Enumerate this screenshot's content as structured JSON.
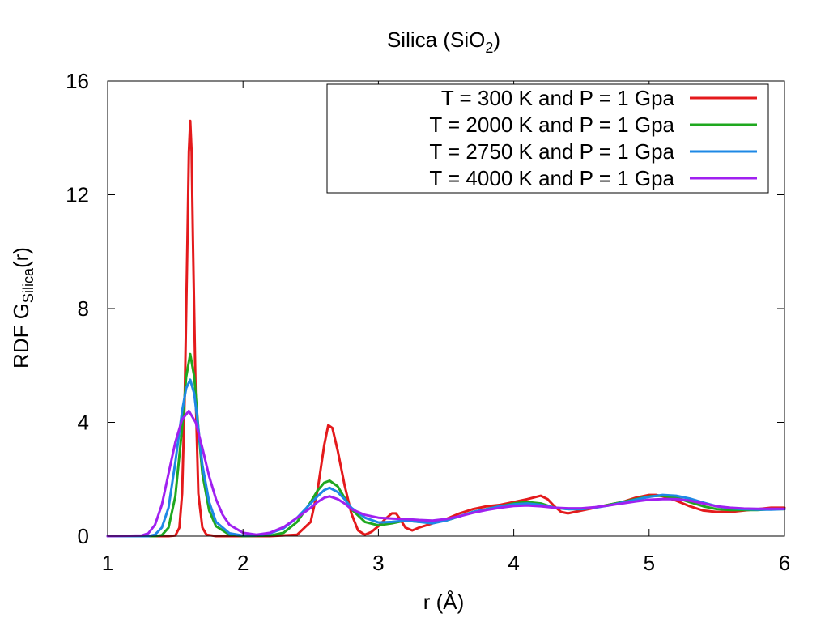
{
  "chart_data": {
    "type": "line",
    "title": "Silica (SiO",
    "title_subscript": "2",
    "title_suffix": ")",
    "xlabel": "r (Å)",
    "ylabel_prefix": "RDF G",
    "ylabel_subscript": "Silica",
    "ylabel_suffix": "(r)",
    "xlim": [
      1,
      6
    ],
    "ylim": [
      0,
      16
    ],
    "xticks": [
      1,
      2,
      3,
      4,
      5,
      6
    ],
    "yticks": [
      0,
      4,
      8,
      12,
      16
    ],
    "legend_position": "top-right",
    "grid": false,
    "series": [
      {
        "name": "T = 300 K and P = 1 Gpa",
        "color": "#e41a1c",
        "x": [
          1.0,
          1.45,
          1.5,
          1.53,
          1.55,
          1.57,
          1.59,
          1.6,
          1.61,
          1.62,
          1.63,
          1.65,
          1.67,
          1.7,
          1.73,
          1.8,
          2.2,
          2.4,
          2.5,
          2.55,
          2.6,
          2.63,
          2.66,
          2.7,
          2.75,
          2.8,
          2.85,
          2.9,
          2.95,
          3.0,
          3.05,
          3.1,
          3.13,
          3.16,
          3.2,
          3.25,
          3.3,
          3.4,
          3.5,
          3.6,
          3.7,
          3.8,
          3.9,
          4.0,
          4.1,
          4.2,
          4.25,
          4.3,
          4.35,
          4.4,
          4.5,
          4.6,
          4.7,
          4.8,
          4.9,
          5.0,
          5.05,
          5.1,
          5.2,
          5.3,
          5.4,
          5.5,
          5.6,
          5.7,
          5.8,
          5.9,
          6.0
        ],
        "y": [
          0,
          0,
          0.02,
          0.3,
          1.5,
          5.0,
          10.5,
          13.5,
          14.6,
          13.5,
          10.5,
          5.0,
          1.5,
          0.3,
          0.05,
          0,
          0,
          0.05,
          0.5,
          1.6,
          3.2,
          3.9,
          3.8,
          3.0,
          1.8,
          0.8,
          0.2,
          0.05,
          0.15,
          0.35,
          0.6,
          0.8,
          0.8,
          0.6,
          0.3,
          0.2,
          0.3,
          0.45,
          0.6,
          0.8,
          0.95,
          1.05,
          1.1,
          1.2,
          1.3,
          1.42,
          1.3,
          1.05,
          0.85,
          0.8,
          0.9,
          1.0,
          1.1,
          1.2,
          1.35,
          1.45,
          1.45,
          1.4,
          1.25,
          1.05,
          0.9,
          0.85,
          0.85,
          0.9,
          0.95,
          1.0,
          1.0
        ]
      },
      {
        "name": "T = 2000 K and P = 1 Gpa",
        "color": "#1fa81f",
        "x": [
          1.0,
          1.35,
          1.4,
          1.45,
          1.5,
          1.55,
          1.58,
          1.61,
          1.64,
          1.67,
          1.7,
          1.75,
          1.8,
          1.9,
          2.0,
          2.2,
          2.3,
          2.4,
          2.5,
          2.55,
          2.6,
          2.64,
          2.7,
          2.75,
          2.8,
          2.9,
          3.0,
          3.1,
          3.2,
          3.3,
          3.4,
          3.5,
          3.6,
          3.7,
          3.8,
          3.9,
          4.0,
          4.1,
          4.2,
          4.3,
          4.4,
          4.5,
          4.6,
          4.7,
          4.8,
          4.9,
          5.0,
          5.1,
          5.2,
          5.3,
          5.4,
          5.5,
          5.6,
          5.7,
          5.8,
          5.9,
          6.0
        ],
        "y": [
          0,
          0,
          0.03,
          0.3,
          1.4,
          3.8,
          5.6,
          6.4,
          5.6,
          3.8,
          2.2,
          0.9,
          0.35,
          0.05,
          0,
          0.02,
          0.12,
          0.5,
          1.2,
          1.6,
          1.88,
          1.95,
          1.75,
          1.35,
          0.95,
          0.5,
          0.38,
          0.45,
          0.55,
          0.5,
          0.5,
          0.55,
          0.7,
          0.85,
          0.95,
          1.05,
          1.15,
          1.2,
          1.15,
          1.0,
          0.95,
          0.95,
          1.0,
          1.1,
          1.2,
          1.3,
          1.4,
          1.42,
          1.35,
          1.2,
          1.05,
          0.95,
          0.92,
          0.92,
          0.92,
          0.95,
          0.95
        ]
      },
      {
        "name": "T = 2750 K and P = 1 Gpa",
        "color": "#1e88e5",
        "x": [
          1.0,
          1.3,
          1.35,
          1.4,
          1.45,
          1.5,
          1.55,
          1.58,
          1.61,
          1.64,
          1.67,
          1.7,
          1.75,
          1.8,
          1.9,
          2.0,
          2.1,
          2.2,
          2.3,
          2.4,
          2.5,
          2.55,
          2.6,
          2.64,
          2.7,
          2.75,
          2.8,
          2.9,
          3.0,
          3.1,
          3.2,
          3.3,
          3.4,
          3.5,
          3.6,
          3.7,
          3.8,
          3.9,
          4.0,
          4.1,
          4.2,
          4.3,
          4.4,
          4.5,
          4.6,
          4.7,
          4.8,
          4.9,
          5.0,
          5.1,
          5.2,
          5.3,
          5.4,
          5.5,
          5.6,
          5.7,
          5.8,
          5.9,
          6.0
        ],
        "y": [
          0,
          0,
          0.05,
          0.3,
          1.0,
          2.6,
          4.4,
          5.2,
          5.5,
          5.0,
          3.8,
          2.5,
          1.2,
          0.5,
          0.1,
          0.02,
          0.02,
          0.1,
          0.28,
          0.65,
          1.15,
          1.4,
          1.62,
          1.7,
          1.55,
          1.3,
          1.0,
          0.65,
          0.48,
          0.5,
          0.55,
          0.5,
          0.45,
          0.55,
          0.7,
          0.85,
          0.95,
          1.05,
          1.12,
          1.15,
          1.1,
          1.0,
          0.95,
          0.95,
          1.0,
          1.08,
          1.18,
          1.28,
          1.38,
          1.45,
          1.42,
          1.32,
          1.18,
          1.05,
          0.98,
          0.95,
          0.93,
          0.93,
          0.95
        ]
      },
      {
        "name": "T = 4000 K and P = 1 Gpa",
        "color": "#a020f0",
        "x": [
          1.0,
          1.25,
          1.3,
          1.35,
          1.4,
          1.45,
          1.5,
          1.55,
          1.6,
          1.65,
          1.7,
          1.75,
          1.8,
          1.85,
          1.9,
          2.0,
          2.1,
          2.2,
          2.3,
          2.4,
          2.5,
          2.55,
          2.6,
          2.64,
          2.7,
          2.75,
          2.8,
          2.9,
          3.0,
          3.1,
          3.2,
          3.3,
          3.4,
          3.5,
          3.6,
          3.7,
          3.8,
          3.9,
          4.0,
          4.1,
          4.2,
          4.3,
          4.4,
          4.5,
          4.6,
          4.7,
          4.8,
          4.9,
          5.0,
          5.1,
          5.2,
          5.3,
          5.4,
          5.5,
          5.6,
          5.7,
          5.8,
          5.9,
          6.0
        ],
        "y": [
          0,
          0.02,
          0.1,
          0.4,
          1.1,
          2.2,
          3.3,
          4.1,
          4.4,
          4.0,
          3.1,
          2.1,
          1.3,
          0.75,
          0.4,
          0.12,
          0.05,
          0.12,
          0.32,
          0.65,
          1.0,
          1.2,
          1.35,
          1.4,
          1.3,
          1.15,
          0.95,
          0.75,
          0.65,
          0.62,
          0.6,
          0.57,
          0.55,
          0.6,
          0.7,
          0.82,
          0.92,
          1.0,
          1.06,
          1.08,
          1.05,
          1.0,
          0.98,
          0.98,
          1.02,
          1.08,
          1.15,
          1.22,
          1.28,
          1.3,
          1.3,
          1.25,
          1.15,
          1.05,
          1.0,
          0.97,
          0.96,
          0.96,
          0.96
        ]
      }
    ]
  }
}
